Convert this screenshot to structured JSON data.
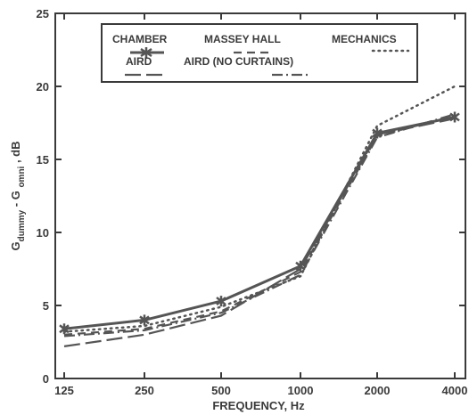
{
  "chart_data": {
    "type": "line",
    "xlabel": "FREQUENCY, Hz",
    "ylabel": {
      "prefix": "G",
      "sub1": "dummy",
      "mid": " - G ",
      "sub2": "omni",
      "suffix": " , dB"
    },
    "x": [
      "125",
      "250",
      "500",
      "1000",
      "2000",
      "4000"
    ],
    "ylim": [
      0,
      25
    ],
    "yticks": [
      "0",
      "5",
      "10",
      "15",
      "20",
      "25"
    ],
    "grid": false,
    "legend_placement": "top-center",
    "series": [
      {
        "name": "CHAMBER",
        "values": [
          3.4,
          4.0,
          5.3,
          7.7,
          16.8,
          17.9
        ],
        "style": "solid-marker",
        "color": "#555555"
      },
      {
        "name": "MASSEY HALL",
        "values": [
          3.0,
          3.4,
          4.6,
          7.3,
          16.6,
          18.0
        ],
        "style": "dash",
        "color": "#555555"
      },
      {
        "name": "MECHANICS",
        "values": [
          3.2,
          3.6,
          4.9,
          7.0,
          17.3,
          20.0
        ],
        "style": "dot",
        "color": "#555555"
      },
      {
        "name": "AIRD",
        "values": [
          2.2,
          3.0,
          4.3,
          7.5,
          16.7,
          17.8
        ],
        "style": "longdash",
        "color": "#555555"
      },
      {
        "name": "AIRD (NO CURTAINS)",
        "values": [
          2.9,
          3.3,
          4.5,
          7.1,
          16.5,
          18.1
        ],
        "style": "dashdot",
        "color": "#555555"
      }
    ]
  }
}
